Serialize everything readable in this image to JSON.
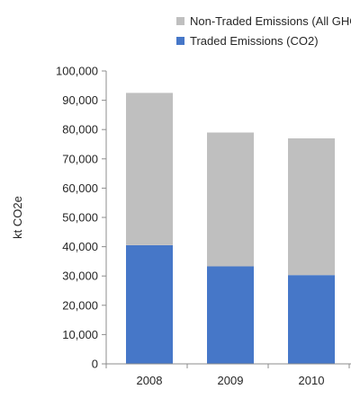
{
  "chart_data": {
    "type": "bar",
    "stacked": true,
    "categories": [
      "2008",
      "2009",
      "2010"
    ],
    "series": [
      {
        "name": "Traded Emissions (CO2)",
        "values": [
          40500,
          33300,
          30300
        ],
        "color": "#4677c8"
      },
      {
        "name": "Non-Traded Emissions (All GHGs)",
        "values": [
          52000,
          45700,
          46700
        ],
        "color": "#bfbfbf"
      }
    ],
    "legend_order": [
      1,
      0
    ],
    "ylabel": "kt CO2e",
    "ylim": [
      0,
      100000
    ],
    "yticks": [
      "0",
      "10,000",
      "20,000",
      "30,000",
      "40,000",
      "50,000",
      "60,000",
      "70,000",
      "80,000",
      "90,000",
      "100,000"
    ],
    "legend_position": "top",
    "grid": false
  }
}
